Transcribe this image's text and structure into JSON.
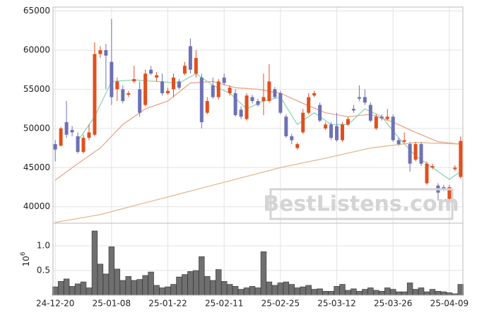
{
  "chart_data": {
    "type": "candlestick",
    "categories": [
      "24-12-20",
      null,
      null,
      null,
      null,
      null,
      null,
      null,
      null,
      null,
      "25-01-08",
      null,
      null,
      null,
      null,
      null,
      null,
      null,
      null,
      null,
      "25-01-22",
      null,
      null,
      null,
      null,
      null,
      null,
      null,
      null,
      null,
      "25-02-11",
      null,
      null,
      null,
      null,
      null,
      null,
      null,
      null,
      null,
      "25-02-25",
      null,
      null,
      null,
      null,
      null,
      null,
      null,
      null,
      null,
      "25-03-12",
      null,
      null,
      null,
      null,
      null,
      null,
      null,
      null,
      null,
      "25-03-26",
      null,
      null,
      null,
      null,
      null,
      null,
      null,
      null,
      null,
      "25-04-09",
      null,
      null
    ],
    "open": [
      48000,
      47800,
      50800,
      49800,
      49000,
      47000,
      48800,
      49200,
      59500,
      60000,
      58500,
      55000,
      55000,
      54300,
      56000,
      55000,
      53000,
      57500,
      56500,
      56000,
      54500,
      55000,
      56000,
      57000,
      60500,
      57000,
      56500,
      52000,
      55500,
      54000,
      56500,
      54500,
      54500,
      52400,
      51200,
      54000,
      53500,
      53500,
      53500,
      55000,
      54500,
      51500,
      49000,
      47500,
      49500,
      52000,
      54200,
      53000,
      50000,
      50500,
      50300,
      48500,
      50500,
      52500,
      54000,
      54000,
      53000,
      50000,
      51500,
      51200,
      51500,
      48500,
      48300,
      48000,
      46000,
      48000,
      43000,
      45000,
      42700,
      42500,
      41000,
      44800,
      43800
    ],
    "high": [
      48500,
      50200,
      53500,
      50300,
      49500,
      49200,
      50500,
      61000,
      60500,
      60800,
      64000,
      56500,
      55500,
      54800,
      58000,
      56000,
      57500,
      58000,
      57200,
      57000,
      55200,
      57000,
      56300,
      58500,
      61500,
      60000,
      57000,
      54000,
      56500,
      56300,
      57000,
      55500,
      55000,
      52800,
      54500,
      54300,
      53800,
      57000,
      58200,
      55300,
      54800,
      51800,
      49300,
      48200,
      52500,
      54500,
      54800,
      53300,
      50800,
      50800,
      52000,
      50800,
      51500,
      53000,
      55500,
      55000,
      53300,
      51800,
      51800,
      52500,
      51800,
      48800,
      49500,
      48300,
      48300,
      48300,
      45800,
      45500,
      43000,
      42800,
      42800,
      45300,
      49000
    ],
    "low": [
      45800,
      47700,
      48800,
      49000,
      46800,
      46800,
      48500,
      49000,
      59000,
      55000,
      53000,
      53500,
      53200,
      54000,
      55800,
      51500,
      52800,
      56800,
      56000,
      54200,
      54300,
      54000,
      55000,
      56800,
      57000,
      56500,
      50000,
      51800,
      53800,
      53700,
      55500,
      54200,
      51500,
      51200,
      51000,
      53200,
      52800,
      51700,
      53300,
      53800,
      51800,
      48800,
      48000,
      47300,
      49300,
      51800,
      54000,
      50800,
      49800,
      48500,
      48300,
      48300,
      50300,
      52000,
      53500,
      53000,
      50800,
      49800,
      51000,
      51000,
      48300,
      47800,
      48100,
      44500,
      45800,
      45200,
      42800,
      44800,
      40800,
      42000,
      40800,
      44600,
      43600
    ],
    "close": [
      47300,
      50000,
      49200,
      49500,
      47000,
      48800,
      49500,
      59500,
      60000,
      59300,
      54000,
      56000,
      53500,
      54500,
      56300,
      52000,
      57000,
      57000,
      56800,
      54500,
      54800,
      56500,
      55200,
      58000,
      57500,
      59000,
      50800,
      53500,
      54000,
      56000,
      55800,
      55200,
      51700,
      51500,
      54200,
      53500,
      53000,
      54000,
      56000,
      54000,
      52000,
      49000,
      48500,
      48000,
      52000,
      54000,
      54500,
      51000,
      50500,
      48800,
      48500,
      50500,
      51200,
      52300,
      53800,
      53300,
      51000,
      51500,
      51300,
      51500,
      48500,
      48000,
      48500,
      45500,
      48000,
      45500,
      45500,
      45200,
      41800,
      42300,
      42500,
      45000,
      48400
    ],
    "up_color": "#e0501e",
    "down_color": "#6e71b3",
    "moving_averages": [
      {
        "color": "#8fd4b8",
        "x": [
          4,
          7,
          10,
          14,
          18,
          22,
          25,
          28,
          31,
          34,
          37,
          40,
          43,
          46,
          49,
          52,
          55,
          58,
          61,
          64,
          67,
          70,
          72
        ],
        "values": [
          48400,
          51500,
          56000,
          56200,
          56000,
          55800,
          57000,
          55500,
          54500,
          52500,
          53500,
          54000,
          50500,
          52000,
          50500,
          50500,
          52500,
          51500,
          48800,
          46500,
          45000,
          43500,
          44500
        ]
      },
      {
        "color": "#eba58a",
        "x": [
          0,
          4,
          8,
          12,
          16,
          20,
          24,
          28,
          32,
          36,
          40,
          44,
          48,
          52,
          56,
          60,
          64,
          68,
          72
        ],
        "values": [
          43400,
          45500,
          47500,
          50500,
          52500,
          53500,
          55800,
          56000,
          55200,
          55000,
          54500,
          53200,
          52000,
          51500,
          51800,
          50800,
          49500,
          48300,
          48000
        ]
      },
      {
        "color": "#e6b98e",
        "x": [
          0,
          8,
          16,
          24,
          32,
          40,
          48,
          56,
          64,
          72
        ],
        "values": [
          38000,
          39000,
          40500,
          42000,
          43500,
          45000,
          46200,
          47500,
          48200,
          48000
        ]
      }
    ],
    "volume": [
      0.17,
      0.28,
      0.33,
      0.18,
      0.23,
      0.27,
      0.15,
      1.3,
      0.63,
      0.43,
      0.98,
      0.53,
      0.3,
      0.38,
      0.3,
      0.32,
      0.4,
      0.47,
      0.2,
      0.15,
      0.17,
      0.22,
      0.37,
      0.42,
      0.48,
      0.5,
      0.78,
      0.38,
      0.3,
      0.52,
      0.28,
      0.22,
      0.18,
      0.12,
      0.15,
      0.18,
      0.15,
      0.88,
      0.27,
      0.2,
      0.25,
      0.27,
      0.22,
      0.15,
      0.17,
      0.2,
      0.12,
      0.13,
      0.08,
      0.08,
      0.18,
      0.22,
      0.1,
      0.13,
      0.08,
      0.12,
      0.15,
      0.1,
      0.08,
      0.15,
      0.12,
      0.07,
      0.07,
      0.25,
      0.12,
      0.15,
      0.07,
      0.12,
      0.08,
      0.07,
      0.05,
      0.03,
      0.22
    ],
    "volume_color": "#6f6f6f",
    "volume_offset": {
      "base": "10",
      "exponent": "6"
    },
    "xlim": [
      -0.4,
      72.4
    ],
    "ylim": [
      37900,
      65500
    ],
    "yticks": [
      40000,
      45000,
      50000,
      55000,
      60000,
      65000
    ],
    "volume_ylim": [
      0,
      1.457
    ],
    "volume_yticks": [
      0.5,
      {
        "value": 1,
        "label": "1.0"
      }
    ],
    "grid": true,
    "watermark": "BestListens.com"
  }
}
